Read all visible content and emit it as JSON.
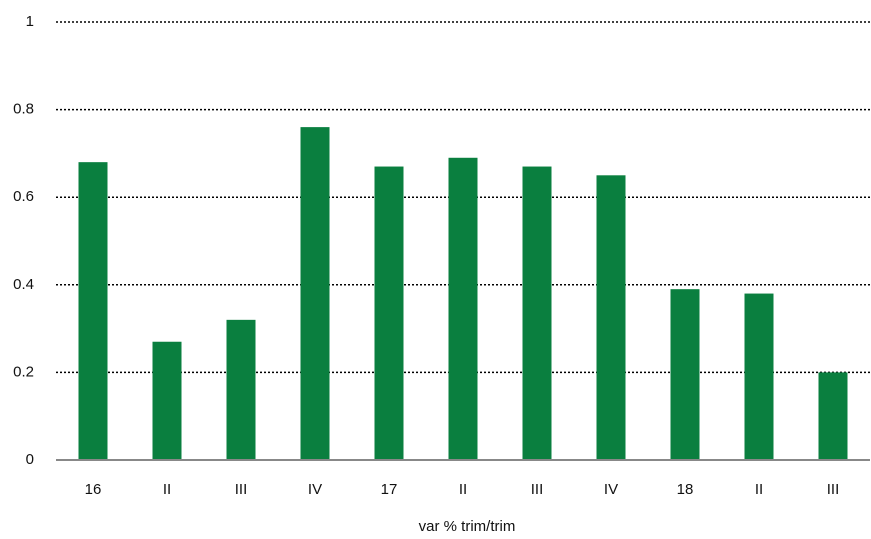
{
  "chart_data": {
    "type": "bar",
    "categories": [
      "16",
      "II",
      "III",
      "IV",
      "17",
      "II",
      "III",
      "IV",
      "18",
      "II",
      "III"
    ],
    "values": [
      0.68,
      0.27,
      0.32,
      0.76,
      0.67,
      0.69,
      0.67,
      0.65,
      0.39,
      0.38,
      0.2
    ],
    "color": "#0a7f3f",
    "x_label": "var % trim/trim",
    "ylim": [
      0,
      1
    ],
    "yticks": [
      0,
      0.2,
      0.4,
      0.6,
      0.8,
      1
    ],
    "grid": true
  }
}
